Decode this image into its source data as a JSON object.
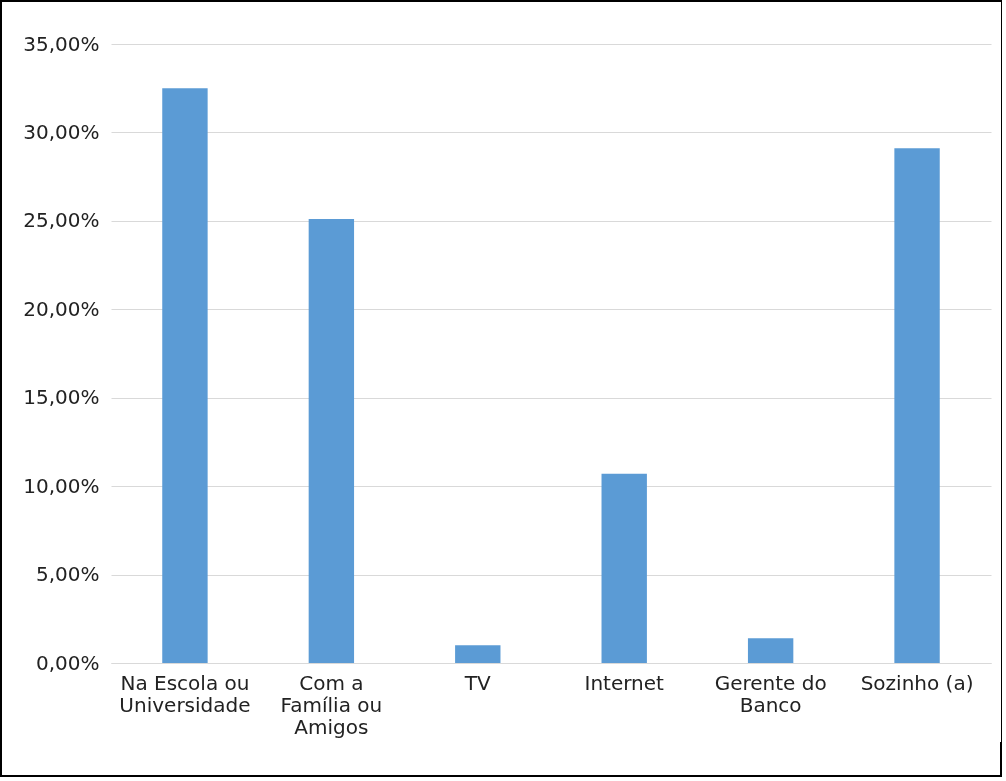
{
  "chart_data": {
    "type": "bar",
    "categories": [
      "Na Escola ou Universidade",
      "Com a Família ou Amigos",
      "TV",
      "Internet",
      "Gerente do Banco",
      "Sozinho (a)"
    ],
    "values": [
      32.5,
      25.1,
      1.0,
      10.7,
      1.4,
      29.1
    ],
    "color": "#5b9bd5",
    "ylim": [
      0,
      35
    ],
    "yticks": [
      {
        "value": 0,
        "label": "0,00%"
      },
      {
        "value": 5,
        "label": "5,00%"
      },
      {
        "value": 10,
        "label": "10,00%"
      },
      {
        "value": 15,
        "label": "15,00%"
      },
      {
        "value": 20,
        "label": "20,00%"
      },
      {
        "value": 25,
        "label": "25,00%"
      },
      {
        "value": 30,
        "label": "30,00%"
      },
      {
        "value": 35,
        "label": "35,00%"
      }
    ],
    "grid": "y"
  }
}
